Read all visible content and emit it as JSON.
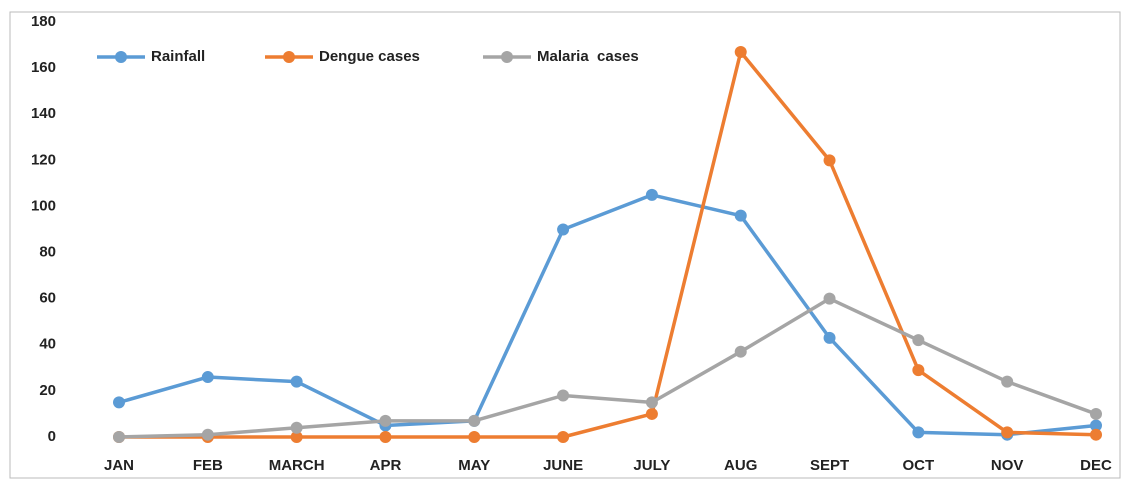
{
  "chart_data": {
    "type": "line",
    "categories": [
      "JAN",
      "FEB",
      "MARCH",
      "APR",
      "MAY",
      "JUNE",
      "JULY",
      "AUG",
      "SEPT",
      "OCT",
      "NOV",
      "DEC"
    ],
    "series": [
      {
        "name": "Rainfall",
        "color": "#5b9bd5",
        "values": [
          15,
          26,
          24,
          5,
          7,
          90,
          105,
          96,
          43,
          2,
          1,
          5
        ]
      },
      {
        "name": "Dengue cases",
        "color": "#ed7d31",
        "values": [
          0,
          0,
          0,
          0,
          0,
          0,
          10,
          167,
          120,
          29,
          2,
          1
        ]
      },
      {
        "name": "Malaria  cases",
        "color": "#a5a5a5",
        "values": [
          0,
          1,
          4,
          7,
          7,
          18,
          15,
          37,
          60,
          42,
          24,
          10
        ]
      }
    ],
    "ylim": [
      0,
      180
    ],
    "yticks": [
      0,
      20,
      40,
      60,
      80,
      100,
      120,
      140,
      160,
      180
    ],
    "grid": false,
    "legend": "top-left"
  }
}
